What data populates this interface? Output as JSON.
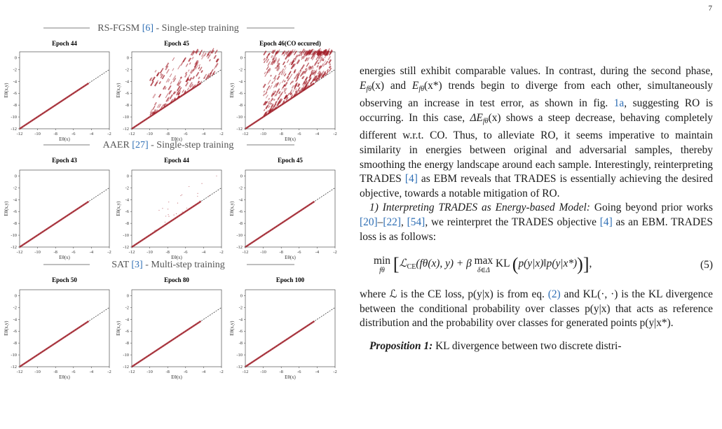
{
  "page_number": "7",
  "figure": {
    "rows": [
      {
        "method": "RS-FGSM",
        "ref": "[6]",
        "desc": " - Single-step training",
        "panels": [
          {
            "title": "Epoch 44",
            "spread": 0
          },
          {
            "title": "Epoch 45",
            "spread": 2
          },
          {
            "title": "Epoch 46(CO occured)",
            "spread": 3
          }
        ]
      },
      {
        "method": "AAER",
        "ref": "[27]",
        "desc": " - Single-step training",
        "panels": [
          {
            "title": "Epoch 43",
            "spread": 0
          },
          {
            "title": "Epoch 44",
            "spread": 1
          },
          {
            "title": "Epoch 45",
            "spread": 0
          }
        ]
      },
      {
        "method": "SAT",
        "ref": "[3]",
        "desc": " - Multi-step training",
        "panels": [
          {
            "title": "Epoch 50",
            "spread": 0
          },
          {
            "title": "Epoch 80",
            "spread": 0
          },
          {
            "title": "Epoch 100",
            "spread": 0
          }
        ]
      }
    ],
    "x_ticks": [
      "-12",
      "-10",
      "-8",
      "-6",
      "-4",
      "-2"
    ],
    "y_ticks": [
      "0",
      "-2",
      "-4",
      "-6",
      "-8",
      "-10",
      "-12"
    ],
    "xlabel": "Eθ(x)",
    "ylabel": "Eθ(x,y)",
    "point_color": "#a3202a"
  },
  "text": {
    "p1": {
      "a": "energies still exhibit comparable values. In contrast, during the second phase, ",
      "e1": "E",
      "e1sub": "fθ",
      "e1arg": "(x)",
      "and": " and ",
      "e2": "E",
      "e2sub": "fθ",
      "e2arg": "(x*)",
      "b": " trends begin to diverge from each other, simultaneously observing an increase in test error, as shown in fig. ",
      "figref": "1a",
      "c": ", suggesting RO is occurring. In this case, ",
      "de": "ΔE",
      "desub": "fθ",
      "dearg": "(x)",
      "d": " shows a steep decrease, behaving completely different w.r.t. CO. Thus, to alleviate RO, it seems imperative to maintain similarity in energies between original and adversarial samples, thereby smoothing the energy landscape around each sample. Interestingly, reinterpreting TRADES ",
      "ref4": "[4]",
      "e": " as EBM reveals that TRADES is essentially achieving the desired objective, towards a notable mitigation of RO."
    },
    "p2": {
      "heading": "1) Interpreting TRADES as Energy-based Model:",
      "a": " Going beyond prior works ",
      "r1": "[20]",
      "dash": "–",
      "r2": "[22]",
      "comma": ", ",
      "r3": "[54]",
      "b": ", we reinterpret the TRADES objective ",
      "r4": "[4]",
      "c": " as an EBM. TRADES loss is as follows:"
    },
    "equation": {
      "min": "min",
      "min_sub": "fθ",
      "loss": "ℒ",
      "loss_sub": "CE",
      "args": "(fθ(x), y) + β ",
      "max": "max",
      "max_sub": "δ∈Δ",
      "kl": " KL ",
      "inner": "p(y|x)‖p(y|x*)",
      "number": "(5)"
    },
    "p3": {
      "a": "where ℒ is the CE loss, p(y|x) is from eq. ",
      "eqref": "(2)",
      "b": " and KL(·, ·) is the KL divergence between the conditional probability over classes p(y|x) that acts as reference distribution and the probability over classes for generated points p(y|x*)."
    },
    "p4": {
      "heading": "Proposition 1:",
      "a": " KL divergence between two discrete distri-"
    }
  }
}
